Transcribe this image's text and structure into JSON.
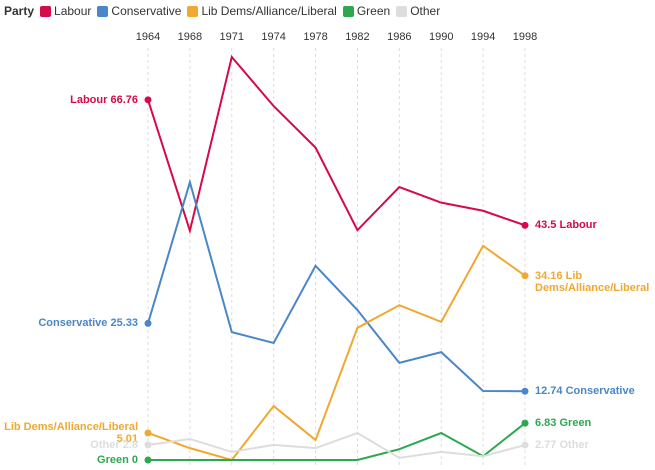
{
  "chart_data": {
    "type": "line",
    "legend_title": "Party",
    "categories": [
      "1964",
      "1968",
      "1971",
      "1974",
      "1978",
      "1982",
      "1986",
      "1990",
      "1994",
      "1998"
    ],
    "grid": true,
    "series": [
      {
        "name": "Labour",
        "color": "#d50a48",
        "values": [
          66.76,
          42.5,
          74.7,
          65.6,
          57.9,
          42.6,
          50.6,
          47.7,
          46.2,
          43.5
        ]
      },
      {
        "name": "Conservative",
        "color": "#4a86c8",
        "values": [
          25.33,
          51.5,
          23.7,
          21.7,
          36.0,
          27.8,
          18.0,
          20.0,
          12.8,
          12.74
        ]
      },
      {
        "name": "Lib Dems/Alliance/Liberal",
        "color": "#f0a830",
        "values": [
          5.01,
          2.2,
          0,
          10.0,
          3.7,
          24.5,
          28.7,
          25.6,
          39.7,
          34.16
        ]
      },
      {
        "name": "Green",
        "color": "#2ea84f",
        "values": [
          0,
          0,
          0,
          0,
          0,
          0,
          2.0,
          5.0,
          0.7,
          6.83
        ]
      },
      {
        "name": "Other",
        "color": "#dddddd",
        "values": [
          2.8,
          3.9,
          1.5,
          2.8,
          2.2,
          5.0,
          0.4,
          1.5,
          0.7,
          2.77
        ]
      }
    ]
  }
}
